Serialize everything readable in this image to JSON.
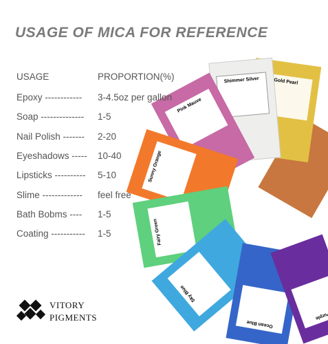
{
  "title": "USAGE OF MICA FOR REFERENCE",
  "table": {
    "header": [
      "USAGE",
      "PROPORTION(%)"
    ],
    "rows": [
      [
        "Epoxy ------------",
        "3-4.5oz per gallon"
      ],
      [
        "Soap --------------",
        "1-5"
      ],
      [
        "Nail Polish -------",
        "2-20"
      ],
      [
        "Eyeshadows -----",
        "10-40"
      ],
      [
        "Lipsticks ----------",
        "5-10"
      ],
      [
        "Slime -------------",
        "feel free"
      ],
      [
        "Bath Bobms ----",
        "1-5"
      ],
      [
        "Coating -----------",
        "1-5"
      ]
    ]
  },
  "packets": [
    "Pink Mauve",
    "Shimmer Silver",
    "Gold Pearl",
    "Sunny Orange",
    "Fairy Green",
    "Sky Blue",
    "Ocean Blue",
    "Purple"
  ],
  "logo": [
    "VITORY",
    "PIGMENTS"
  ]
}
